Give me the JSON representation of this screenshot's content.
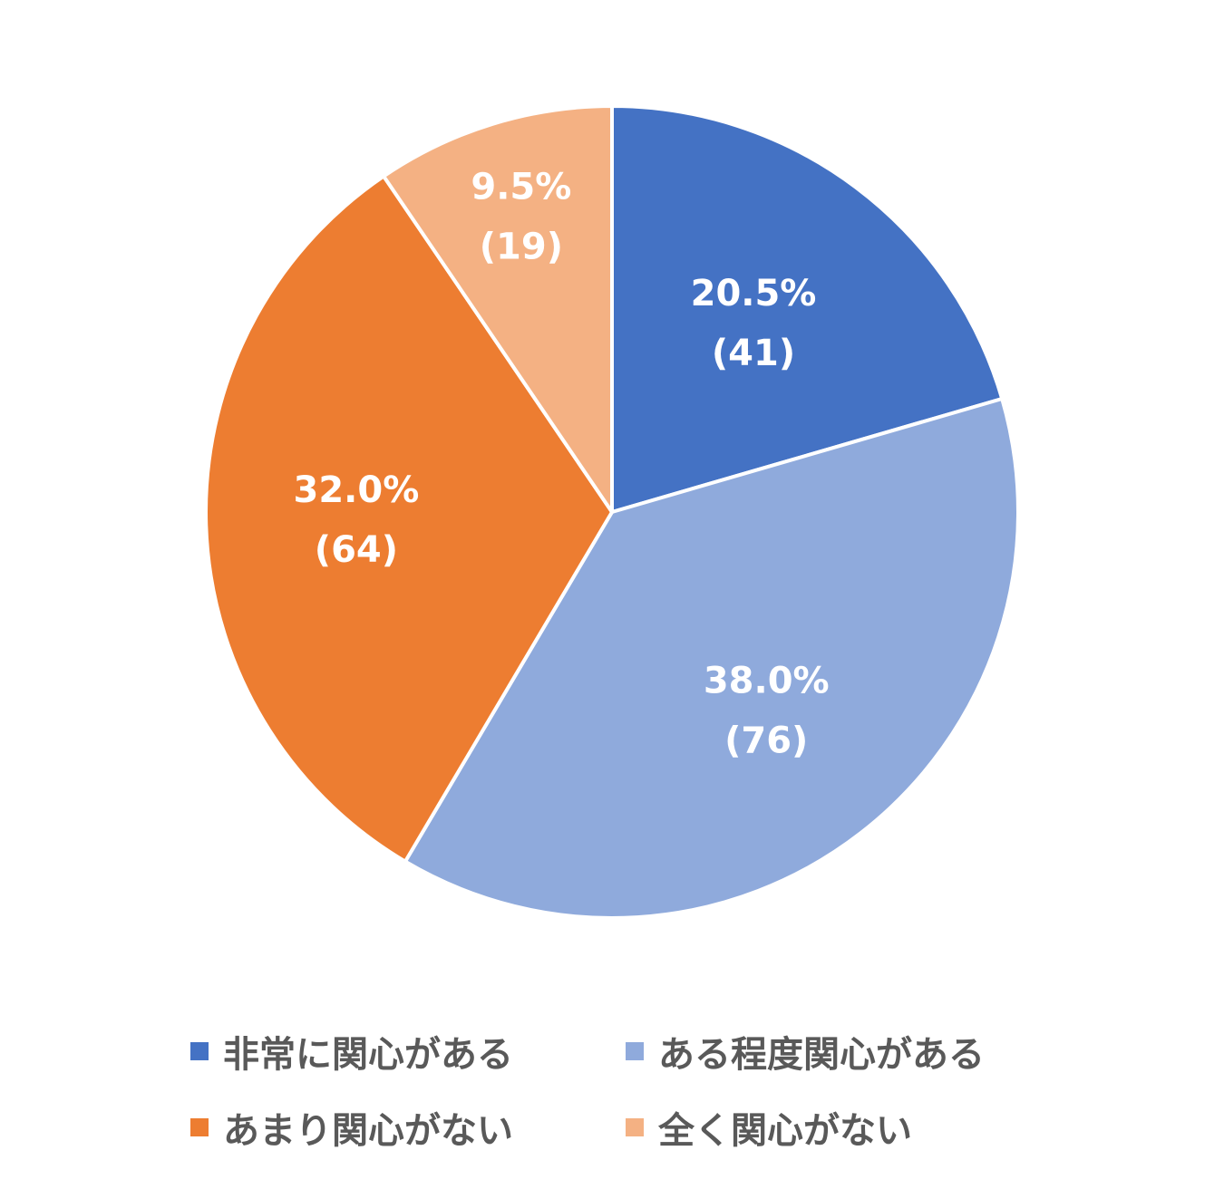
{
  "chart_data": {
    "type": "pie",
    "start_angle": "12 o'clock",
    "direction": "clockwise",
    "legend_position": "bottom",
    "slices": [
      {
        "label": "非常に関心がある",
        "value": 41,
        "percent_label": "20.5%",
        "count_label": "(41)",
        "color": "#4472C4"
      },
      {
        "label": "ある程度関心がある",
        "value": 76,
        "percent_label": "38.0%",
        "count_label": "(76)",
        "color": "#8FAADC"
      },
      {
        "label": "あまり関心がない",
        "value": 64,
        "percent_label": "32.0%",
        "count_label": "(64)",
        "color": "#ED7D31"
      },
      {
        "label": "全く関心がない",
        "value": 19,
        "percent_label": "9.5%",
        "count_label": "(19)",
        "color": "#F4B183"
      }
    ]
  }
}
